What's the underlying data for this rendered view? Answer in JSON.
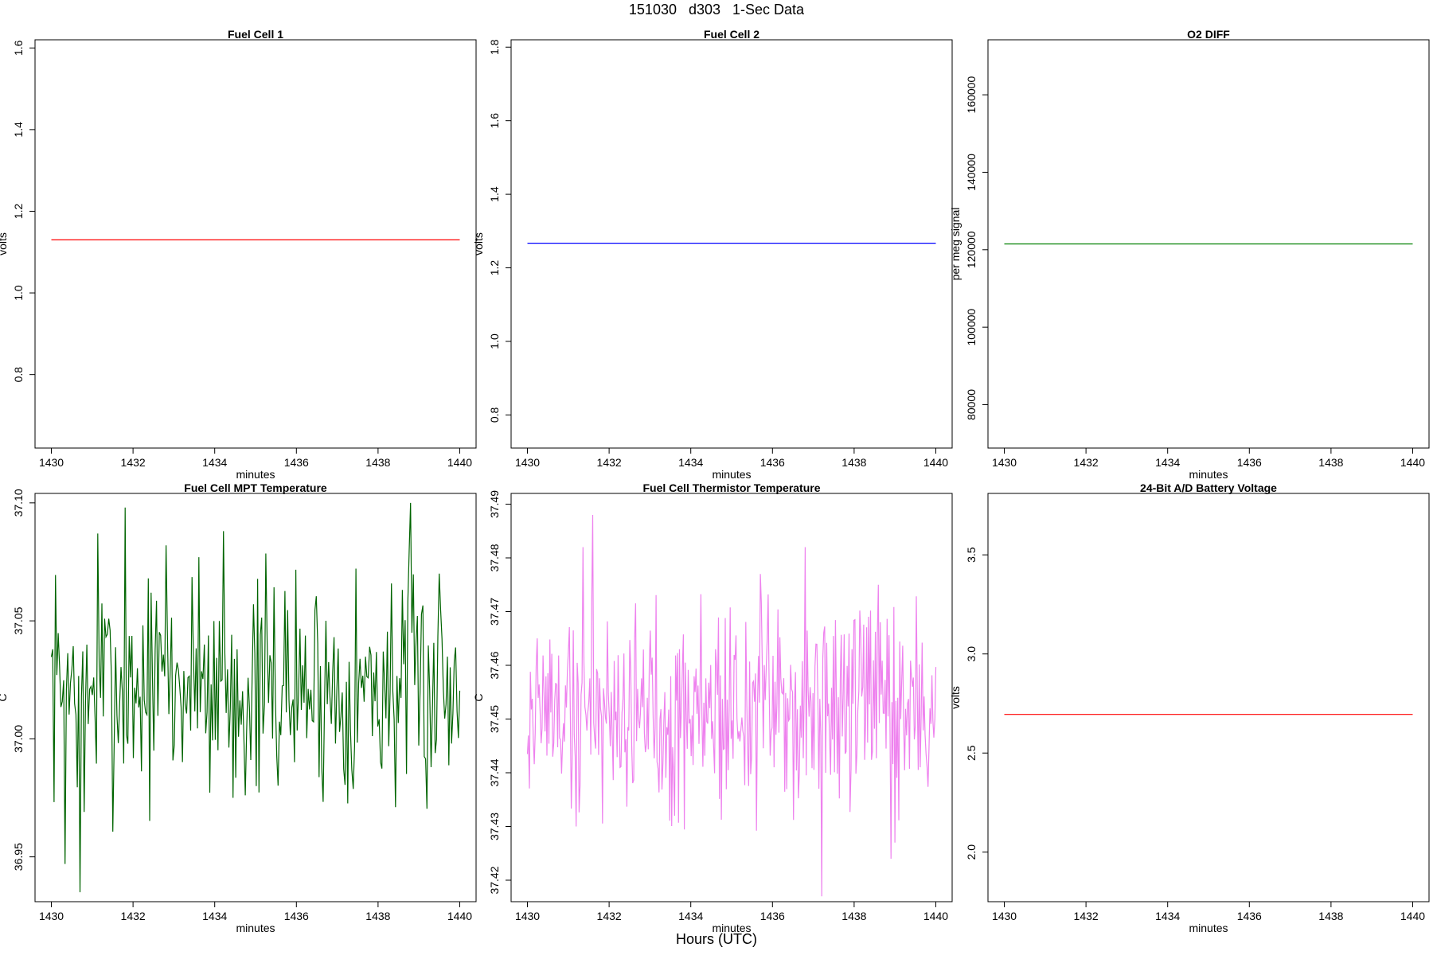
{
  "figure": {
    "title": "151030   d303   1-Sec Data",
    "xlabel": "Hours (UTC)"
  },
  "chart_data": [
    {
      "type": "line",
      "title": "Fuel Cell 1",
      "xlabel": "minutes",
      "ylabel": "volts",
      "xlim": [
        1429.6,
        1440.4
      ],
      "ylim": [
        0.62,
        1.62
      ],
      "xticks": [
        1430,
        1432,
        1434,
        1436,
        1438,
        1440
      ],
      "yticks": [
        0.8,
        1.0,
        1.2,
        1.4,
        1.6
      ],
      "ytick_labels": [
        "0.8",
        "1.0",
        "1.2",
        "1.4",
        "1.6"
      ],
      "color": "#ff0000",
      "series": [
        {
          "x": [
            1430,
            1440
          ],
          "values": [
            1.13,
            1.13
          ]
        }
      ]
    },
    {
      "type": "line",
      "title": "Fuel Cell 2",
      "xlabel": "minutes",
      "ylabel": "volts",
      "xlim": [
        1429.6,
        1440.4
      ],
      "ylim": [
        0.71,
        1.82
      ],
      "xticks": [
        1430,
        1432,
        1434,
        1436,
        1438,
        1440
      ],
      "yticks": [
        0.8,
        1.0,
        1.2,
        1.4,
        1.6,
        1.8
      ],
      "ytick_labels": [
        "0.8",
        "1.0",
        "1.2",
        "1.4",
        "1.6",
        "1.8"
      ],
      "color": "#0000ff",
      "series": [
        {
          "x": [
            1430,
            1440
          ],
          "values": [
            1.267,
            1.267
          ]
        }
      ]
    },
    {
      "type": "line",
      "title": "O2 DIFF",
      "xlabel": "minutes",
      "ylabel": "per meg signal",
      "xlim": [
        1429.6,
        1440.4
      ],
      "ylim": [
        68800,
        174200
      ],
      "xticks": [
        1430,
        1432,
        1434,
        1436,
        1438,
        1440
      ],
      "yticks": [
        80000,
        100000,
        120000,
        140000,
        160000
      ],
      "ytick_labels": [
        "80000",
        "100000",
        "120000",
        "140000",
        "160000"
      ],
      "color": "#008000",
      "series": [
        {
          "x": [
            1430,
            1440
          ],
          "values": [
            121500,
            121500
          ]
        }
      ]
    },
    {
      "type": "line",
      "title": "Fuel Cell MPT Temperature",
      "xlabel": "minutes",
      "ylabel": "C",
      "xlim": [
        1429.6,
        1440.4
      ],
      "ylim": [
        36.931,
        37.104
      ],
      "xticks": [
        1430,
        1432,
        1434,
        1436,
        1438,
        1440
      ],
      "yticks": [
        36.95,
        37.0,
        37.05,
        37.1
      ],
      "ytick_labels": [
        "36.95",
        "37.00",
        "37.05",
        "37.10"
      ],
      "color": "#006400",
      "series": [
        {
          "x": [
            1430,
            1440
          ],
          "noisy": true,
          "count": 300,
          "seed": 7,
          "mean": 37.022,
          "amp": 0.024,
          "spikes": [
            [
              1430.35,
              36.947
            ],
            [
              1430.7,
              36.935
            ],
            [
              1430.8,
              36.969
            ],
            [
              1431.15,
              37.087
            ],
            [
              1431.8,
              37.098
            ],
            [
              1432.8,
              37.082
            ],
            [
              1434.2,
              37.088
            ],
            [
              1434.45,
              36.975
            ],
            [
              1433.6,
              37.077
            ],
            [
              1438.8,
              37.1
            ],
            [
              1435.0,
              36.98
            ],
            [
              1439.5,
              37.07
            ]
          ]
        }
      ]
    },
    {
      "type": "line",
      "title": "Fuel Cell Thermistor Temperature",
      "xlabel": "minutes",
      "ylabel": "C",
      "xlim": [
        1429.6,
        1440.4
      ],
      "ylim": [
        37.416,
        37.492
      ],
      "xticks": [
        1430,
        1432,
        1434,
        1436,
        1438,
        1440
      ],
      "yticks": [
        37.42,
        37.43,
        37.44,
        37.45,
        37.46,
        37.47,
        37.48,
        37.49
      ],
      "ytick_labels": [
        "37.42",
        "37.43",
        "37.44",
        "37.45",
        "37.46",
        "37.47",
        "37.48",
        "37.49"
      ],
      "color": "#ee82ee",
      "series": [
        {
          "x": [
            1430,
            1440
          ],
          "noisy": true,
          "count": 420,
          "seed": 19,
          "mean": 37.452,
          "amp": 0.01,
          "spikes": [
            [
              1431.2,
              37.43
            ],
            [
              1431.35,
              37.482
            ],
            [
              1431.6,
              37.488
            ],
            [
              1433.6,
              37.432
            ],
            [
              1435.7,
              37.477
            ],
            [
              1436.8,
              37.482
            ],
            [
              1437.2,
              37.417
            ],
            [
              1438.6,
              37.475
            ],
            [
              1438.9,
              37.424
            ],
            [
              1439.0,
              37.427
            ]
          ]
        }
      ]
    },
    {
      "type": "line",
      "title": "24-Bit A/D Battery Voltage",
      "xlabel": "minutes",
      "ylabel": "volts",
      "xlim": [
        1429.6,
        1440.4
      ],
      "ylim": [
        1.75,
        3.81
      ],
      "xticks": [
        1430,
        1432,
        1434,
        1436,
        1438,
        1440
      ],
      "yticks": [
        2.0,
        2.5,
        3.0,
        3.5
      ],
      "ytick_labels": [
        "2.0",
        "2.5",
        "3.0",
        "3.5"
      ],
      "color": "#ff0000",
      "series": [
        {
          "x": [
            1430,
            1440
          ],
          "values": [
            2.695,
            2.695
          ]
        }
      ]
    }
  ]
}
